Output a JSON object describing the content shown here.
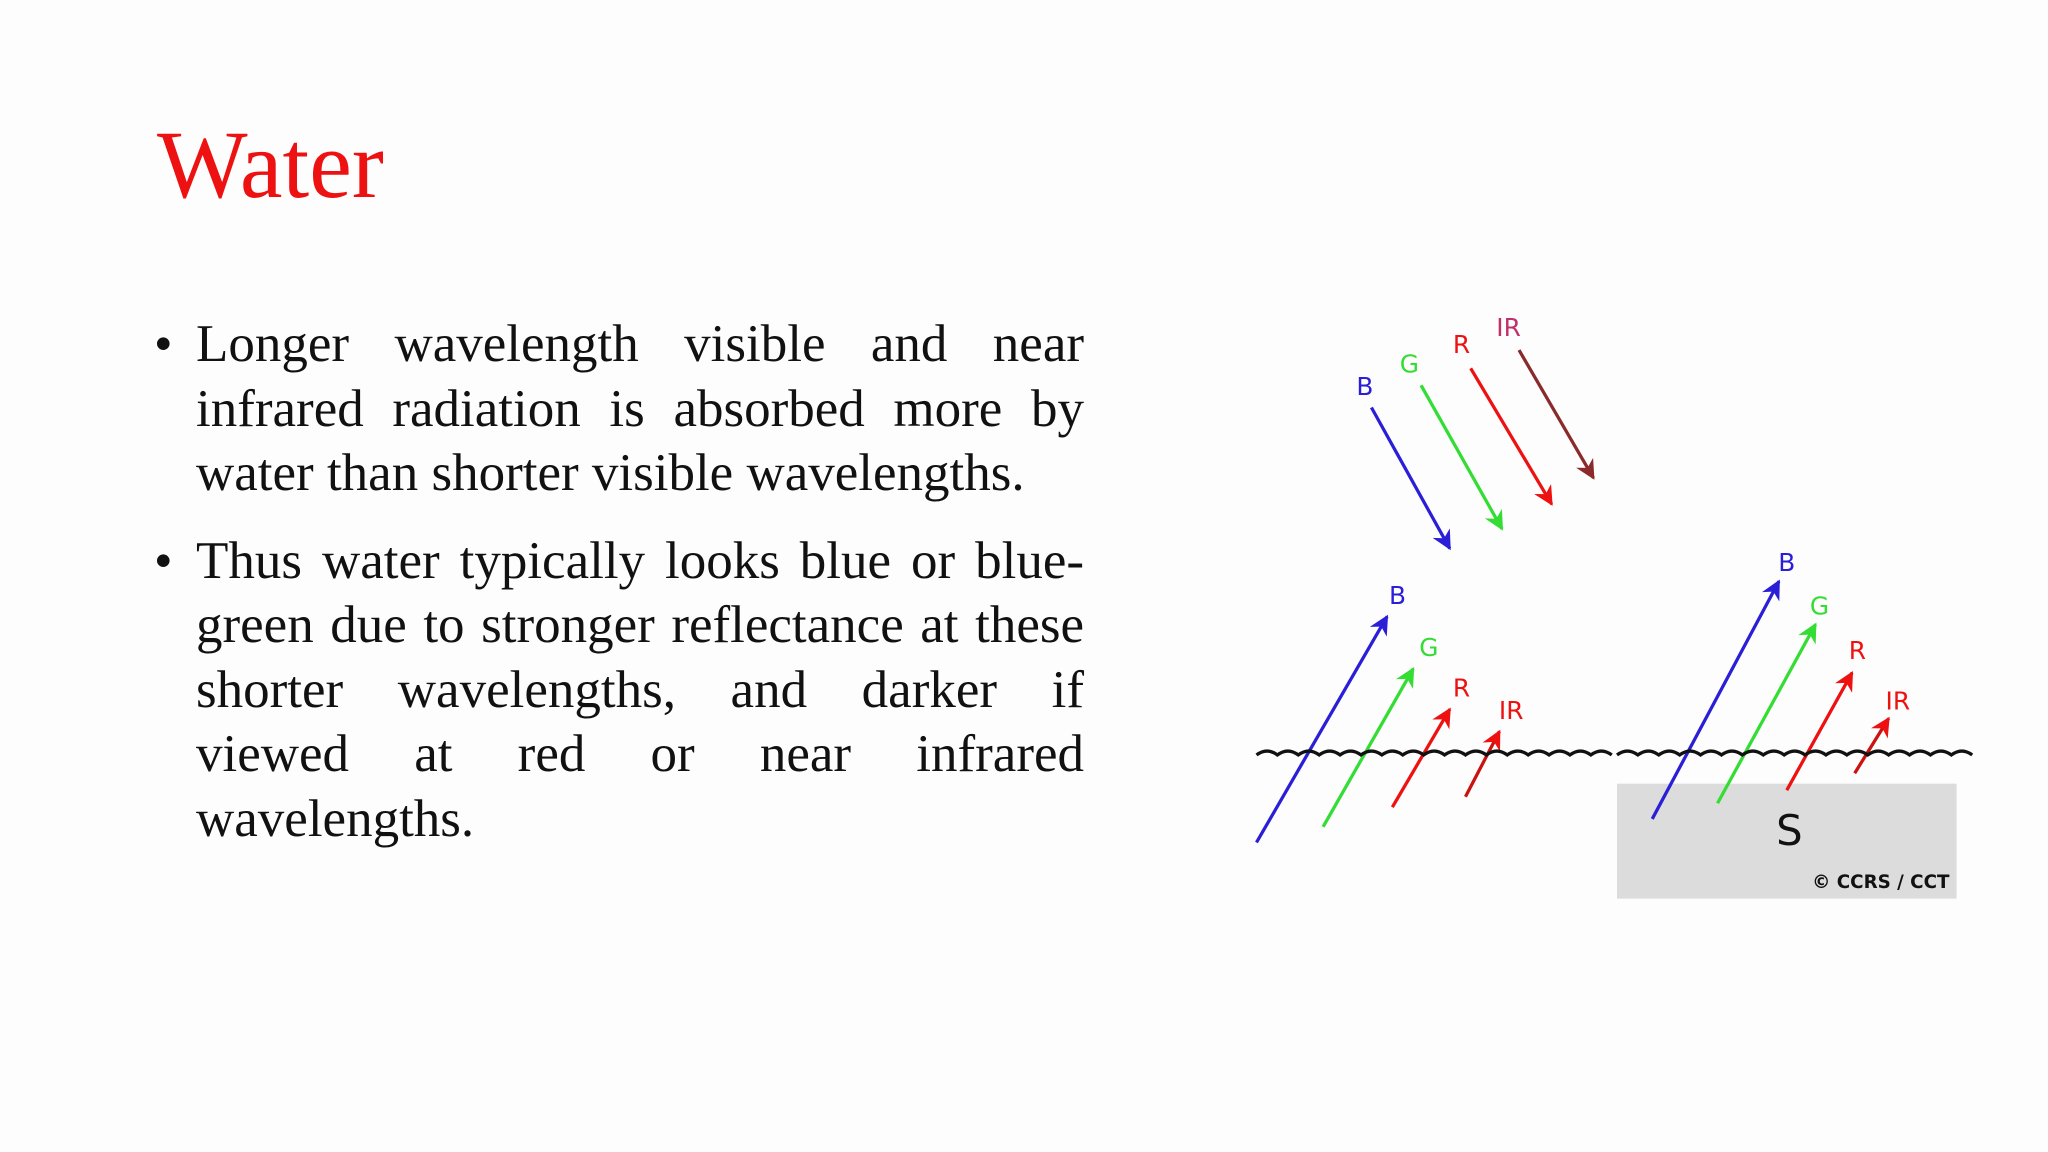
{
  "header": {
    "title": "Water"
  },
  "bullets": [
    "Longer wavelength visible and near infrared radiation is absorbed more by water than shorter visible wavelengths.",
    "Thus water typically looks blue or blue-green due to stronger reflectance at these shorter wavelengths, and darker if viewed at red or near infrared wavelengths."
  ],
  "diagram": {
    "incident": [
      "B",
      "G",
      "R",
      "IR"
    ],
    "water": [
      "B",
      "G",
      "R",
      "IR"
    ],
    "soil": [
      "B",
      "G",
      "R",
      "IR"
    ],
    "soil_label": "S",
    "credit": "© CCRS / CCT"
  }
}
